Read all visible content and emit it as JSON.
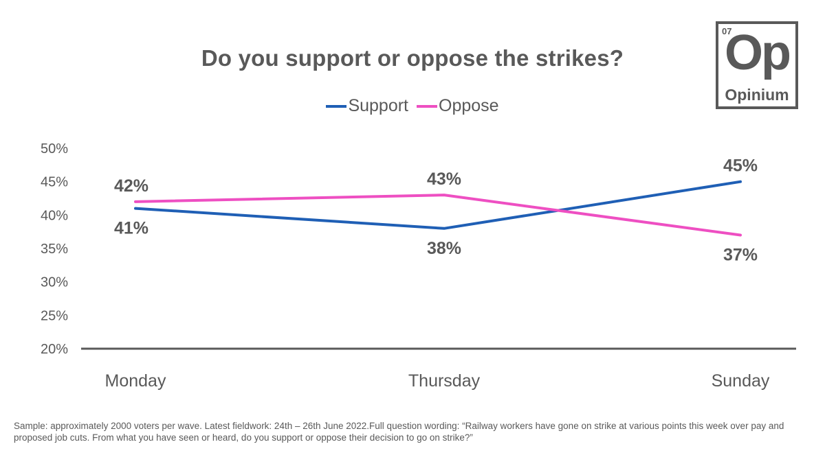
{
  "chart_data": {
    "type": "line",
    "title": "Do you support or oppose the strikes?",
    "categories": [
      "Monday",
      "Thursday",
      "Sunday"
    ],
    "series": [
      {
        "name": "Support",
        "color": "#1F5FB5",
        "values": [
          41,
          38,
          45
        ],
        "labels": [
          "41%",
          "38%",
          "45%"
        ]
      },
      {
        "name": "Oppose",
        "color": "#EE4FC2",
        "values": [
          42,
          43,
          37
        ],
        "labels": [
          "42%",
          "43%",
          "37%"
        ]
      }
    ],
    "ylim": [
      20,
      50
    ],
    "yticks": [
      "20%",
      "25%",
      "30%",
      "35%",
      "40%",
      "45%",
      "50%"
    ],
    "ytick_values": [
      20,
      25,
      30,
      35,
      40,
      45,
      50
    ],
    "xlabel": "",
    "ylabel": "",
    "grid": false,
    "legend_position": "top-center"
  },
  "logo": {
    "number": "07",
    "symbol": "Op",
    "name": "Opinium"
  },
  "footnote": "Sample: approximately 2000 voters per wave. Latest fieldwork: 24th – 26th June 2022.Full question wording: “Railway workers have gone on strike at various points this week over pay and proposed job cuts. From what you have seen or heard, do you support or oppose their decision to go on strike?”"
}
